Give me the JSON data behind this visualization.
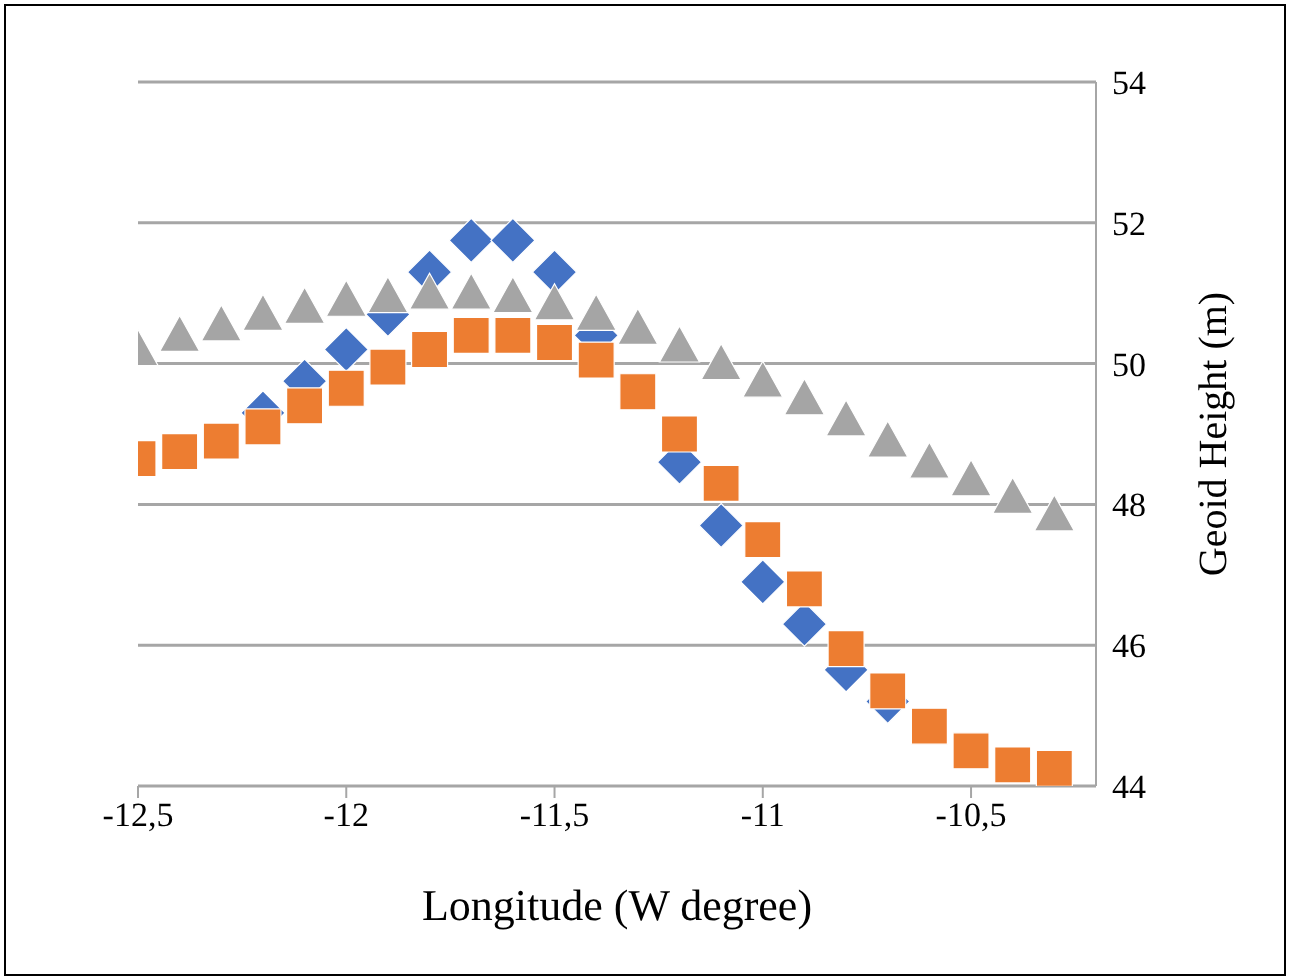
{
  "chart_data": {
    "type": "scatter",
    "xlabel": "Longitude (W degree)",
    "ylabel": "Geoid Height (m)",
    "x": [
      -12.5,
      -12.4,
      -12.3,
      -12.2,
      -12.1,
      -12.0,
      -11.9,
      -11.8,
      -11.7,
      -11.6,
      -11.5,
      -11.4,
      -11.3,
      -11.2,
      -11.1,
      -11.0,
      -10.9,
      -10.8,
      -10.7,
      -10.6,
      -10.5,
      -10.4,
      -10.3
    ],
    "series": [
      {
        "color": "#4472c4",
        "marker": "diamond",
        "values": [
          null,
          null,
          null,
          49.3,
          49.75,
          50.2,
          50.7,
          51.3,
          51.75,
          51.75,
          51.3,
          50.4,
          null,
          48.6,
          47.7,
          46.9,
          46.3,
          45.65,
          45.2,
          null,
          null,
          null,
          null
        ]
      },
      {
        "color": "#a5a5a5",
        "marker": "triangle",
        "values": [
          50.2,
          50.4,
          50.55,
          50.7,
          50.8,
          50.9,
          50.95,
          51.0,
          51.0,
          50.95,
          50.85,
          50.7,
          50.5,
          50.25,
          50.0,
          49.75,
          49.5,
          49.2,
          48.9,
          48.6,
          48.35,
          48.1,
          47.85
        ]
      },
      {
        "color": "#ed7d31",
        "marker": "square",
        "values": [
          48.65,
          48.75,
          48.9,
          49.1,
          49.4,
          49.65,
          49.95,
          50.2,
          50.4,
          50.4,
          50.3,
          50.05,
          49.6,
          49.0,
          48.3,
          47.5,
          46.8,
          45.95,
          45.35,
          44.85,
          44.5,
          44.3,
          44.25
        ]
      }
    ],
    "xlim": [
      -12.5,
      -10.2
    ],
    "xticks": [
      {
        "value": -12.5,
        "label": "-12,5"
      },
      {
        "value": -12,
        "label": "-12"
      },
      {
        "value": -11.5,
        "label": "-11,5"
      },
      {
        "value": -11,
        "label": "-11"
      },
      {
        "value": -10.5,
        "label": "-10,5"
      }
    ],
    "ylim": [
      44,
      54
    ],
    "yticks": [
      44,
      46,
      48,
      50,
      52,
      54
    ],
    "grid": "y",
    "legend": false
  }
}
